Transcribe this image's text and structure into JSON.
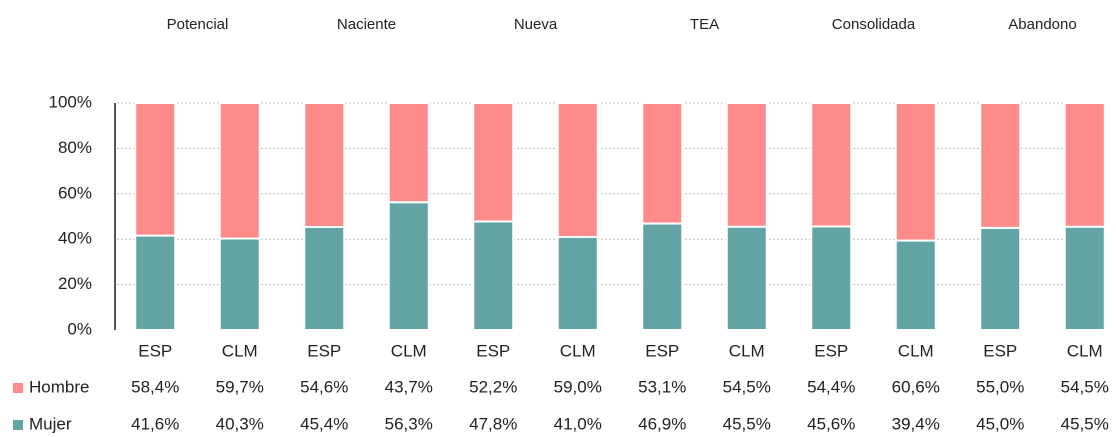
{
  "chart_data": {
    "type": "stacked_bar",
    "groups": [
      "Potencial",
      "Naciente",
      "Nueva",
      "TEA",
      "Consolidada",
      "Abandono"
    ],
    "categories": [
      "ESP",
      "CLM",
      "ESP",
      "CLM",
      "ESP",
      "CLM",
      "ESP",
      "CLM",
      "ESP",
      "CLM",
      "ESP",
      "CLM"
    ],
    "series": [
      {
        "name": "Hombre",
        "color": "#ff8a8a",
        "values": [
          58.4,
          59.7,
          54.6,
          43.7,
          52.2,
          59.0,
          53.1,
          54.5,
          54.4,
          60.6,
          55.0,
          54.5
        ],
        "value_labels": [
          "58,4%",
          "59,7%",
          "54,6%",
          "43,7%",
          "52,2%",
          "59,0%",
          "53,1%",
          "54,5%",
          "54,4%",
          "60,6%",
          "55,0%",
          "54,5%"
        ]
      },
      {
        "name": "Mujer",
        "color": "#62a3a3",
        "values": [
          41.6,
          40.3,
          45.4,
          56.3,
          47.8,
          41.0,
          46.9,
          45.5,
          45.6,
          39.4,
          45.0,
          45.5
        ],
        "value_labels": [
          "41,6%",
          "40,3%",
          "45,4%",
          "56,3%",
          "47,8%",
          "41,0%",
          "46,9%",
          "45,5%",
          "45,6%",
          "39,4%",
          "45,0%",
          "45,5%"
        ]
      }
    ],
    "ylim": [
      0,
      100
    ],
    "yticks": [
      {
        "value": 0,
        "label": "0%"
      },
      {
        "value": 20,
        "label": "20%"
      },
      {
        "value": 40,
        "label": "40%"
      },
      {
        "value": 60,
        "label": "60%"
      },
      {
        "value": 80,
        "label": "80%"
      },
      {
        "value": 100,
        "label": "100%"
      }
    ],
    "grid": true
  }
}
